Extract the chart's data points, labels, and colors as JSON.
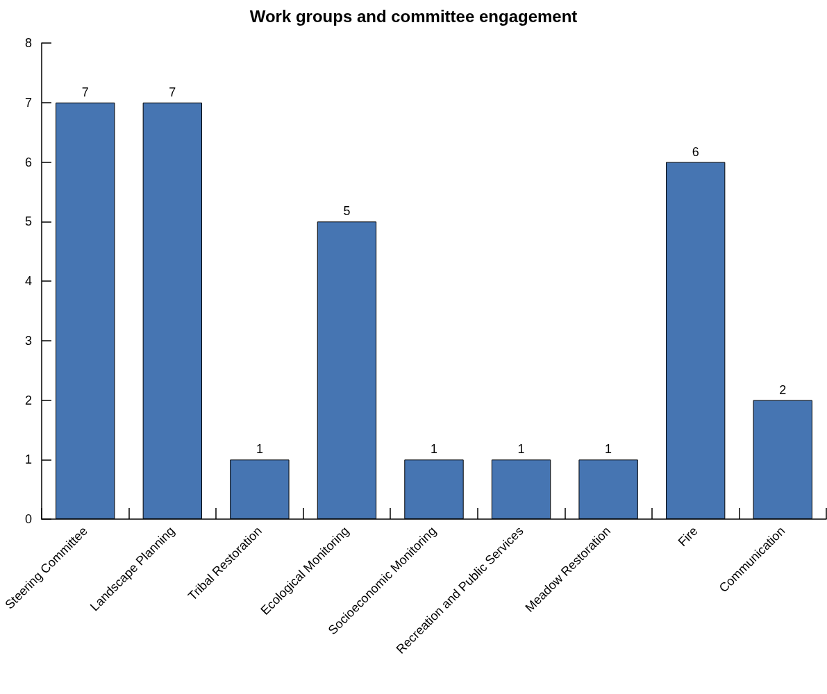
{
  "chart_data": {
    "type": "bar",
    "title": "Work groups and committee engagement",
    "categories": [
      "Steering Committee",
      "Landscape Planning",
      "Tribal Restoration",
      "Ecological Monitoring",
      "Socioeconomic Monitoring",
      "Recreation and Public Services",
      "Meadow Restoration",
      "Fire",
      "Communication"
    ],
    "values": [
      7,
      7,
      1,
      5,
      1,
      1,
      1,
      6,
      2
    ],
    "color": "#4675b2",
    "ylim": [
      0,
      8
    ],
    "yticks": [
      0,
      1,
      2,
      3,
      4,
      5,
      6,
      7,
      8
    ],
    "data_labels": true,
    "grid": false
  }
}
